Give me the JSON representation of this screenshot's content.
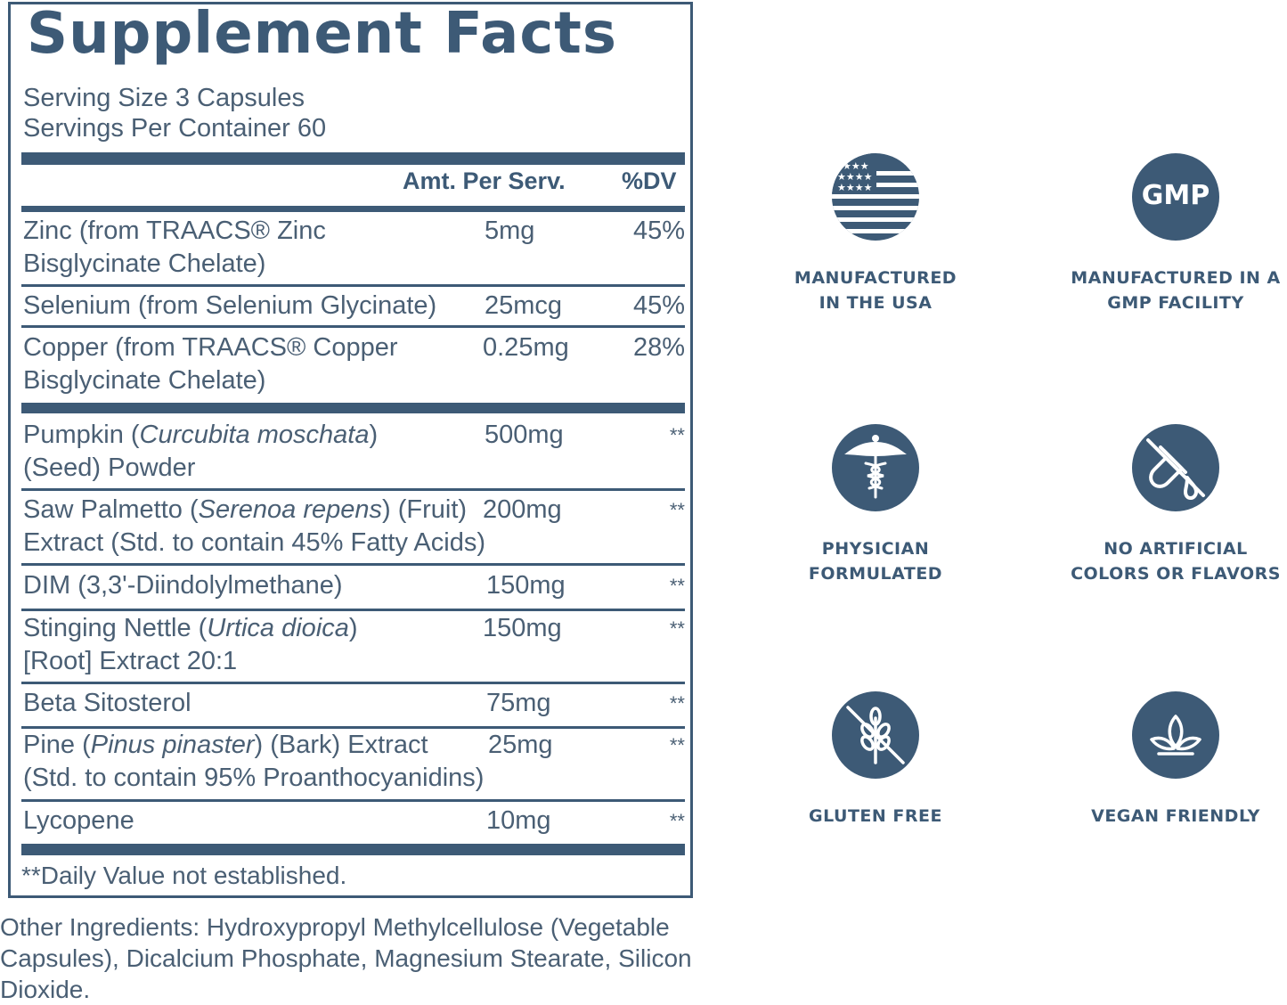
{
  "title": "Supplement Facts",
  "serving_size": "Serving Size 3 Capsules",
  "servings_per_container": "Servings Per Container 60",
  "columns": {
    "amount": "Amt. Per Serv.",
    "dv": "%DV"
  },
  "nutrients": [
    {
      "line1": "Zinc (from TRAACS® Zinc",
      "line2": "Bisglycinate Chelate)",
      "amount": "5mg",
      "dv": "45%"
    },
    {
      "line1": "Selenium (from Selenium Glycinate)",
      "line2": "",
      "amount": "25mcg",
      "dv": "45%"
    },
    {
      "line1": "Copper (from TRAACS® Copper",
      "line2": "Bisglycinate Chelate)",
      "amount": "0.25mg",
      "dv": "28%"
    }
  ],
  "ingredients": [
    {
      "pre": "Pumpkin (",
      "ital": "Curcubita moschata",
      "post": ")",
      "line2": "(Seed) Powder",
      "amount": "500mg",
      "dv": "**"
    },
    {
      "pre": "Saw Palmetto (",
      "ital": "Serenoa repens",
      "post": ") (Fruit)",
      "line2": "Extract (Std. to contain 45% Fatty Acids)",
      "amount": "200mg",
      "dv": "**"
    },
    {
      "pre": "DIM (3,3'-Diindolylmethane)",
      "ital": "",
      "post": "",
      "line2": "",
      "amount": "150mg",
      "dv": "**"
    },
    {
      "pre": "Stinging Nettle (",
      "ital": "Urtica dioica",
      "post": ")",
      "line2": "[Root] Extract 20:1",
      "amount": "150mg",
      "dv": "**"
    },
    {
      "pre": "Beta Sitosterol",
      "ital": "",
      "post": "",
      "line2": "",
      "amount": "75mg",
      "dv": "**"
    },
    {
      "pre": "Pine (",
      "ital": "Pinus pinaster",
      "post": ") (Bark) Extract",
      "line2": "(Std. to contain 95% Proanthocyanidins)",
      "amount": "25mg",
      "dv": "**"
    },
    {
      "pre": "Lycopene",
      "ital": "",
      "post": "",
      "line2": "",
      "amount": "10mg",
      "dv": "**"
    }
  ],
  "footnote": "**Daily Value not established.",
  "other_ingredients": "Other Ingredients: Hydroxypropyl Methylcellulose (Vegetable Capsules), Dicalcium Phosphate, Magnesium Stearate, Silicon Dioxide.",
  "badges": {
    "usa": {
      "icon": "usa-flag-icon",
      "line1": "MANUFACTURED",
      "line2": "IN THE USA"
    },
    "gmp": {
      "icon": "gmp-icon",
      "text": "GMP",
      "line1": "MANUFACTURED IN A",
      "line2": "GMP FACILITY"
    },
    "physician": {
      "icon": "caduceus-icon",
      "line1": "PHYSICIAN",
      "line2": "FORMULATED"
    },
    "artificial": {
      "icon": "no-test-tube-icon",
      "line1": "NO ARTIFICIAL",
      "line2": "COLORS OR FLAVORS"
    },
    "gluten": {
      "icon": "no-wheat-icon",
      "line1": "GLUTEN FREE"
    },
    "vegan": {
      "icon": "leaf-icon",
      "line1": "VEGAN FRIENDLY"
    }
  },
  "colors": {
    "primary": "#3d5a76",
    "text": "#4a5f74"
  }
}
